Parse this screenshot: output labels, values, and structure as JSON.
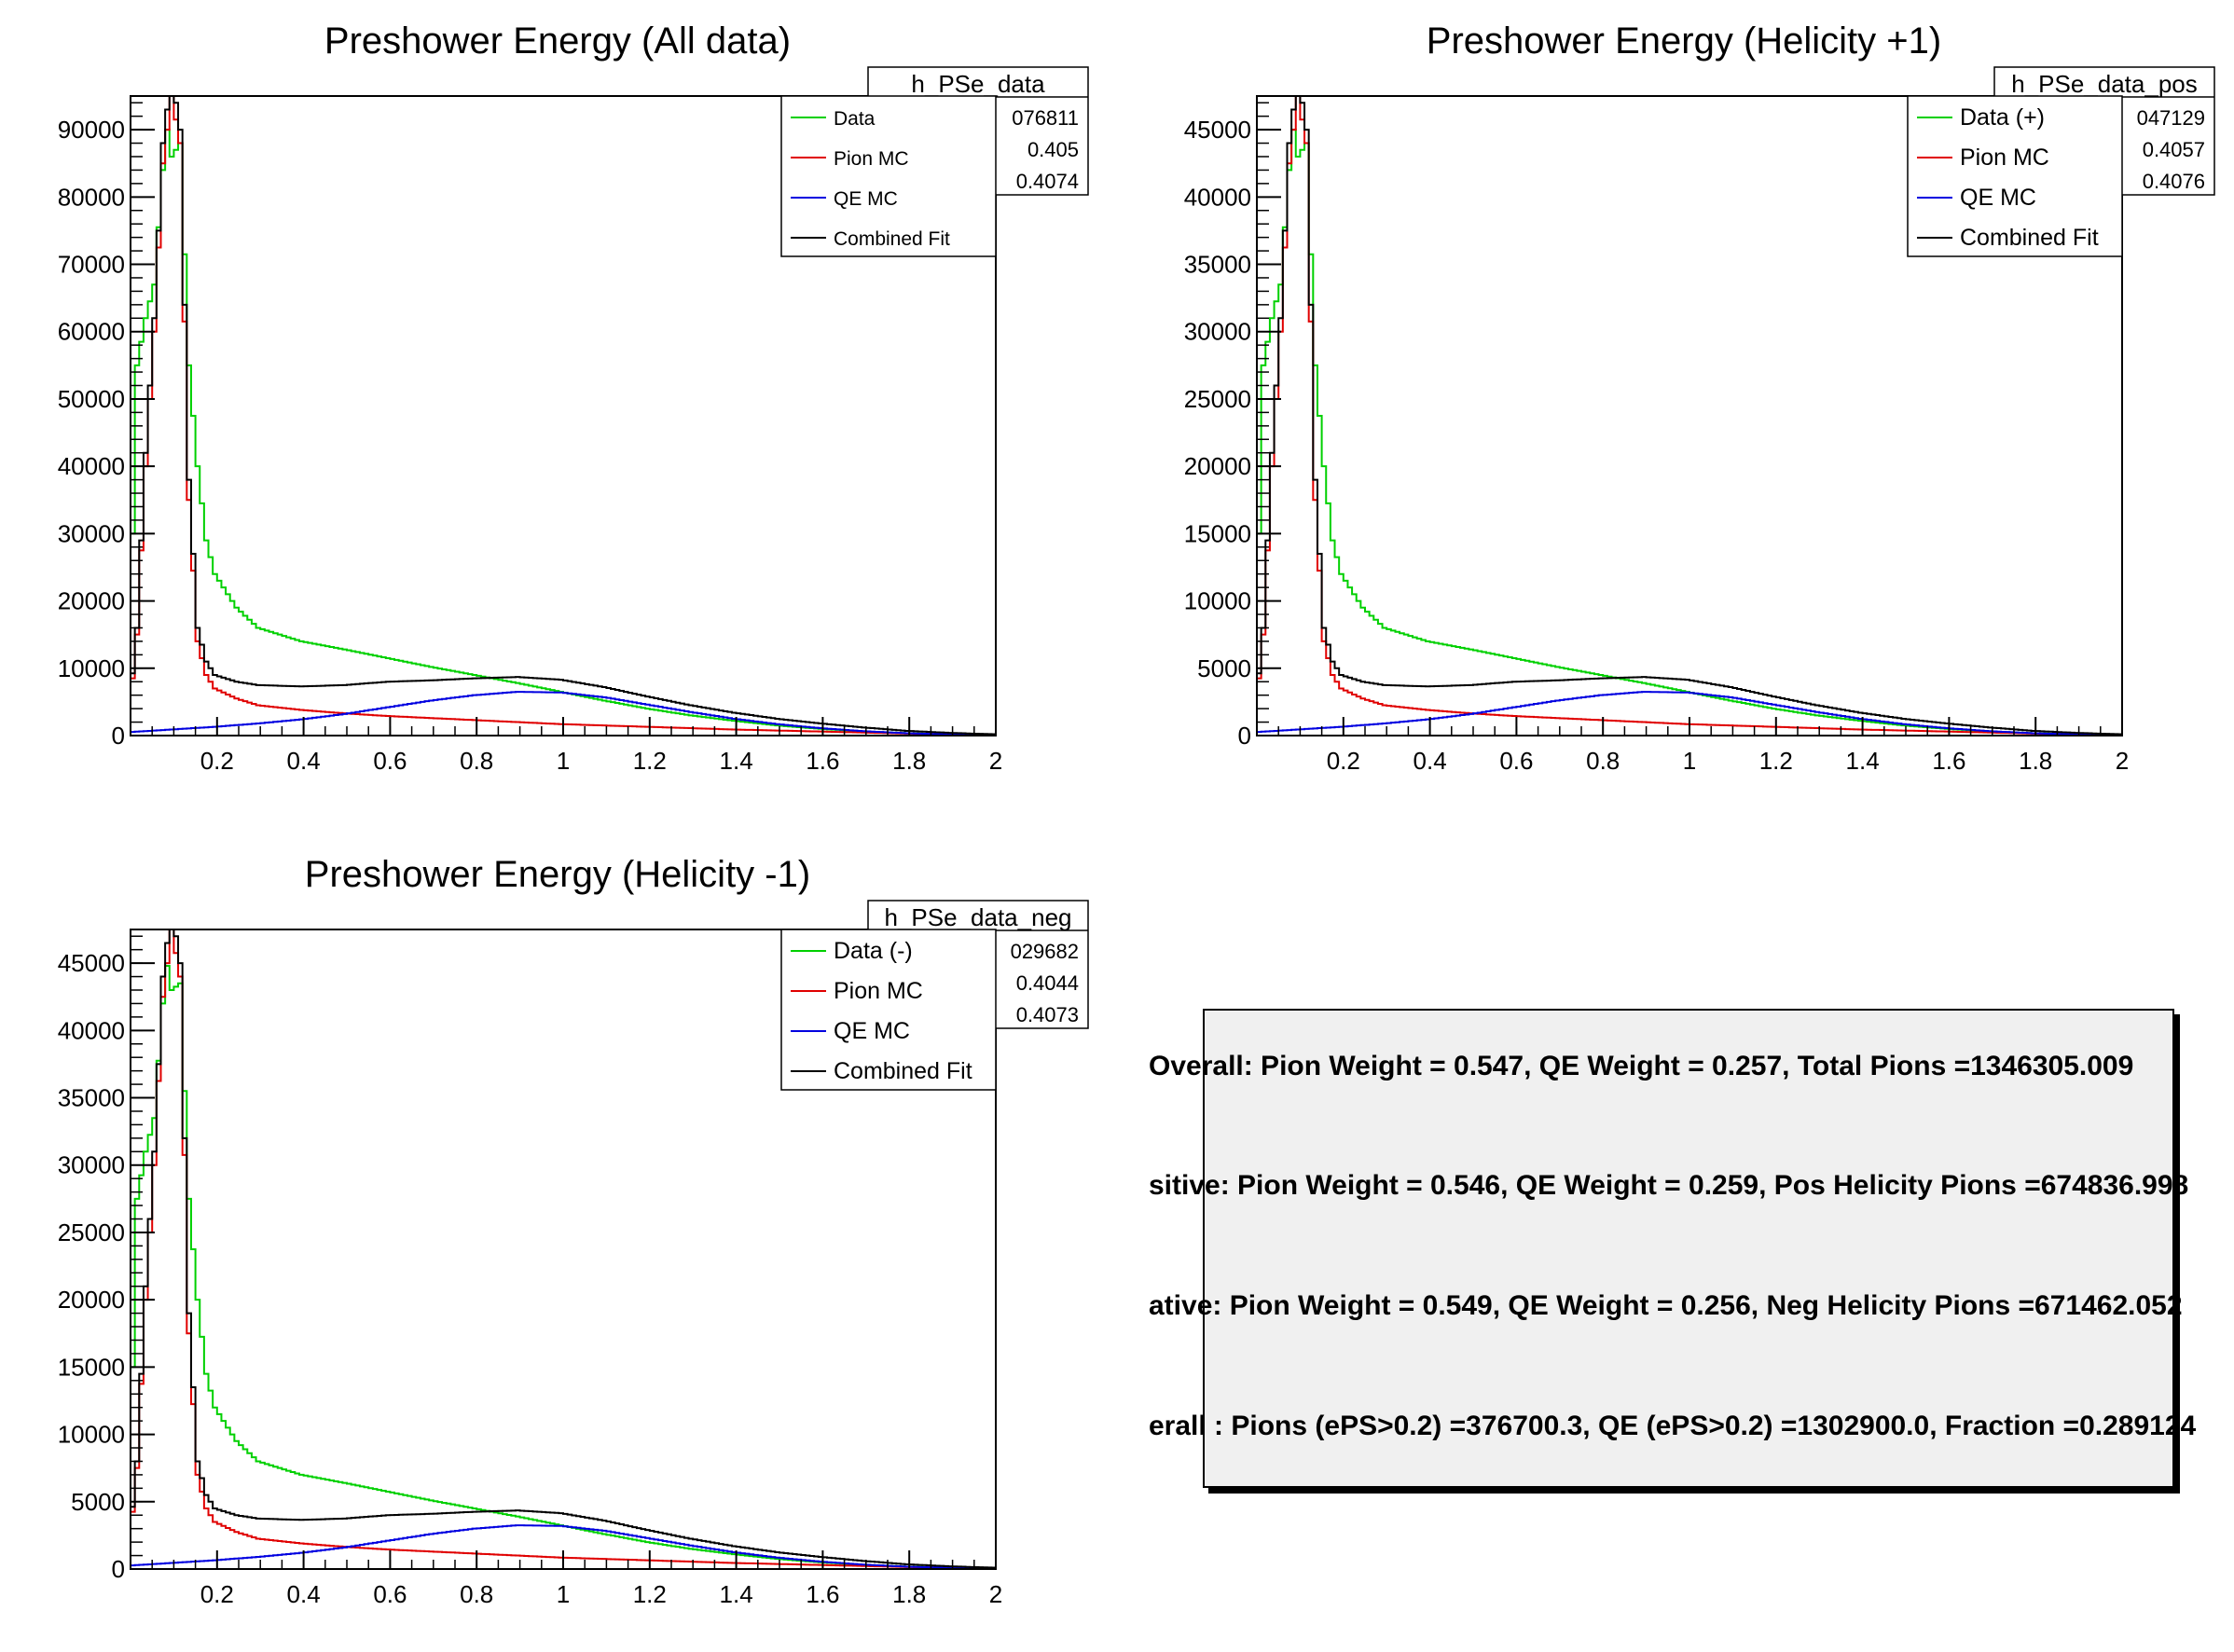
{
  "chart_data": [
    {
      "type": "line",
      "title": "Preshower Energy (All data)",
      "stats": {
        "name": "h_PSe_data",
        "rows": [
          "076811",
          "0.405",
          "0.4074"
        ]
      },
      "legend": [
        "Data",
        "Pion MC",
        "QE MC",
        "Combined Fit"
      ],
      "legend_position": "top-right",
      "xlim": [
        0.0,
        2.0
      ],
      "ylim": [
        0,
        95000
      ],
      "xticks": [
        "0.2",
        "0.4",
        "0.6",
        "0.8",
        "1",
        "1.2",
        "1.4",
        "1.6",
        "1.8",
        "2"
      ],
      "yticks": [
        "0",
        "10000",
        "20000",
        "30000",
        "40000",
        "50000",
        "60000",
        "70000",
        "80000",
        "90000"
      ],
      "series": [
        {
          "name": "Data",
          "color": "#00d000",
          "x": [
            0.0,
            0.02,
            0.04,
            0.06,
            0.08,
            0.09,
            0.1,
            0.12,
            0.14,
            0.16,
            0.18,
            0.2,
            0.25,
            0.3,
            0.4,
            0.5,
            0.6,
            0.7,
            0.8,
            0.9,
            1.0,
            1.1,
            1.2,
            1.3,
            1.4,
            1.5,
            1.6,
            1.7,
            1.8,
            1.9,
            2.0
          ],
          "y": [
            5000,
            55000,
            62000,
            67000,
            84000,
            90000,
            86000,
            88000,
            55000,
            40000,
            29000,
            24000,
            19000,
            16000,
            14000,
            12800,
            11500,
            10200,
            9000,
            7800,
            6500,
            5200,
            4000,
            3000,
            2200,
            1500,
            1000,
            600,
            350,
            200,
            100
          ]
        },
        {
          "name": "Pion MC",
          "color": "#e00000",
          "x": [
            0.0,
            0.02,
            0.04,
            0.06,
            0.08,
            0.1,
            0.12,
            0.14,
            0.16,
            0.18,
            0.2,
            0.25,
            0.3,
            0.4,
            0.5,
            0.6,
            0.7,
            0.8,
            0.9,
            1.0,
            1.2,
            1.4,
            1.6,
            1.8,
            2.0
          ],
          "y": [
            2000,
            15000,
            40000,
            60000,
            85000,
            95000,
            88000,
            35000,
            14000,
            9000,
            7000,
            5500,
            4500,
            3800,
            3300,
            2900,
            2600,
            2300,
            2000,
            1700,
            1300,
            900,
            600,
            300,
            150
          ]
        },
        {
          "name": "QE MC",
          "color": "#0000e0",
          "x": [
            0.0,
            0.1,
            0.2,
            0.3,
            0.4,
            0.5,
            0.6,
            0.7,
            0.8,
            0.9,
            1.0,
            1.1,
            1.2,
            1.3,
            1.4,
            1.5,
            1.6,
            1.7,
            1.8,
            1.9,
            2.0
          ],
          "y": [
            500,
            900,
            1300,
            1800,
            2400,
            3200,
            4200,
            5200,
            6000,
            6500,
            6400,
            5700,
            4600,
            3500,
            2500,
            1700,
            1100,
            650,
            350,
            180,
            80
          ]
        },
        {
          "name": "Combined Fit",
          "color": "#000000",
          "x": [
            0.0,
            0.02,
            0.04,
            0.06,
            0.08,
            0.1,
            0.12,
            0.14,
            0.16,
            0.18,
            0.2,
            0.25,
            0.3,
            0.4,
            0.5,
            0.6,
            0.7,
            0.8,
            0.9,
            1.0,
            1.1,
            1.2,
            1.3,
            1.4,
            1.5,
            1.6,
            1.7,
            1.8,
            1.9,
            2.0
          ],
          "y": [
            2500,
            16000,
            42000,
            62000,
            88000,
            98000,
            90000,
            38000,
            16000,
            11000,
            9000,
            8000,
            7500,
            7300,
            7500,
            8000,
            8200,
            8500,
            8700,
            8300,
            7200,
            5800,
            4500,
            3400,
            2500,
            1800,
            1200,
            700,
            400,
            200
          ]
        }
      ]
    },
    {
      "type": "line",
      "title": "Preshower Energy (Helicity +1)",
      "stats": {
        "name": "h_PSe_data_pos",
        "rows": [
          "047129",
          "0.4057",
          "0.4076"
        ]
      },
      "legend": [
        "Data (+)",
        "Pion MC",
        "QE MC",
        "Combined Fit"
      ],
      "legend_position": "top-right",
      "xlim": [
        0.0,
        2.0
      ],
      "ylim": [
        0,
        47500
      ],
      "xticks": [
        "0.2",
        "0.4",
        "0.6",
        "0.8",
        "1",
        "1.2",
        "1.4",
        "1.6",
        "1.8",
        "2"
      ],
      "yticks": [
        "0",
        "5000",
        "10000",
        "15000",
        "20000",
        "25000",
        "30000",
        "35000",
        "40000",
        "45000"
      ],
      "series": [
        {
          "name": "Data (+)",
          "color": "#00d000",
          "x": [
            0.0,
            0.02,
            0.04,
            0.06,
            0.08,
            0.09,
            0.1,
            0.12,
            0.14,
            0.16,
            0.18,
            0.2,
            0.25,
            0.3,
            0.4,
            0.5,
            0.6,
            0.7,
            0.8,
            0.9,
            1.0,
            1.1,
            1.2,
            1.3,
            1.4,
            1.5,
            1.6,
            1.7,
            1.8,
            1.9,
            2.0
          ],
          "y": [
            2500,
            27500,
            31000,
            33500,
            42000,
            45000,
            43000,
            44000,
            27500,
            20000,
            14500,
            12000,
            9500,
            8000,
            7000,
            6400,
            5750,
            5100,
            4500,
            3900,
            3250,
            2600,
            2000,
            1500,
            1100,
            750,
            500,
            300,
            175,
            100,
            50
          ]
        },
        {
          "name": "Pion MC",
          "color": "#e00000",
          "x": [
            0.0,
            0.02,
            0.04,
            0.06,
            0.08,
            0.1,
            0.12,
            0.14,
            0.16,
            0.18,
            0.2,
            0.25,
            0.3,
            0.4,
            0.5,
            0.6,
            0.7,
            0.8,
            0.9,
            1.0,
            1.2,
            1.4,
            1.6,
            1.8,
            2.0
          ],
          "y": [
            1000,
            7500,
            20000,
            30000,
            42500,
            47500,
            44000,
            17500,
            7000,
            4500,
            3500,
            2750,
            2250,
            1900,
            1650,
            1450,
            1300,
            1150,
            1000,
            850,
            650,
            450,
            300,
            150,
            75
          ]
        },
        {
          "name": "QE MC",
          "color": "#0000e0",
          "x": [
            0.0,
            0.1,
            0.2,
            0.3,
            0.4,
            0.5,
            0.6,
            0.7,
            0.8,
            0.9,
            1.0,
            1.1,
            1.2,
            1.3,
            1.4,
            1.5,
            1.6,
            1.7,
            1.8,
            1.9,
            2.0
          ],
          "y": [
            250,
            450,
            650,
            900,
            1200,
            1600,
            2100,
            2600,
            3000,
            3250,
            3200,
            2850,
            2300,
            1750,
            1250,
            850,
            550,
            325,
            175,
            90,
            40
          ]
        },
        {
          "name": "Combined Fit",
          "color": "#000000",
          "x": [
            0.0,
            0.02,
            0.04,
            0.06,
            0.08,
            0.1,
            0.12,
            0.14,
            0.16,
            0.18,
            0.2,
            0.25,
            0.3,
            0.4,
            0.5,
            0.6,
            0.7,
            0.8,
            0.9,
            1.0,
            1.1,
            1.2,
            1.3,
            1.4,
            1.5,
            1.6,
            1.7,
            1.8,
            1.9,
            2.0
          ],
          "y": [
            1250,
            8000,
            21000,
            31000,
            44000,
            49000,
            45000,
            19000,
            8000,
            5500,
            4500,
            4000,
            3750,
            3650,
            3750,
            4000,
            4100,
            4250,
            4350,
            4150,
            3600,
            2900,
            2250,
            1700,
            1250,
            900,
            600,
            350,
            200,
            100
          ]
        }
      ]
    },
    {
      "type": "line",
      "title": "Preshower Energy (Helicity -1)",
      "stats": {
        "name": "h_PSe_data_neg",
        "rows": [
          "029682",
          "0.4044",
          "0.4073"
        ]
      },
      "legend": [
        "Data (-)",
        "Pion MC",
        "QE MC",
        "Combined Fit"
      ],
      "legend_position": "top-right",
      "xlim": [
        0.0,
        2.0
      ],
      "ylim": [
        0,
        47500
      ],
      "xticks": [
        "0.2",
        "0.4",
        "0.6",
        "0.8",
        "1",
        "1.2",
        "1.4",
        "1.6",
        "1.8",
        "2"
      ],
      "yticks": [
        "0",
        "5000",
        "10000",
        "15000",
        "20000",
        "25000",
        "30000",
        "35000",
        "40000",
        "45000"
      ],
      "series": [
        {
          "name": "Data (-)",
          "color": "#00d000",
          "x": [
            0.0,
            0.02,
            0.04,
            0.06,
            0.08,
            0.09,
            0.1,
            0.12,
            0.14,
            0.16,
            0.18,
            0.2,
            0.25,
            0.3,
            0.4,
            0.5,
            0.6,
            0.7,
            0.8,
            0.9,
            1.0,
            1.1,
            1.2,
            1.3,
            1.4,
            1.5,
            1.6,
            1.7,
            1.8,
            1.9,
            2.0
          ],
          "y": [
            2500,
            27500,
            31000,
            33500,
            42000,
            44800,
            43000,
            43500,
            27500,
            20000,
            14500,
            12000,
            9500,
            8000,
            7000,
            6400,
            5750,
            5100,
            4500,
            3900,
            3250,
            2600,
            2000,
            1500,
            1100,
            750,
            500,
            300,
            175,
            100,
            50
          ]
        },
        {
          "name": "Pion MC",
          "color": "#e00000",
          "x": [
            0.0,
            0.02,
            0.04,
            0.06,
            0.08,
            0.1,
            0.12,
            0.14,
            0.16,
            0.18,
            0.2,
            0.25,
            0.3,
            0.4,
            0.5,
            0.6,
            0.7,
            0.8,
            0.9,
            1.0,
            1.2,
            1.4,
            1.6,
            1.8,
            2.0
          ],
          "y": [
            1000,
            7500,
            20000,
            30000,
            42500,
            47500,
            44000,
            17500,
            7000,
            4500,
            3500,
            2750,
            2250,
            1900,
            1650,
            1450,
            1300,
            1150,
            1000,
            850,
            650,
            450,
            300,
            150,
            75
          ]
        },
        {
          "name": "QE MC",
          "color": "#0000e0",
          "x": [
            0.0,
            0.1,
            0.2,
            0.3,
            0.4,
            0.5,
            0.6,
            0.7,
            0.8,
            0.9,
            1.0,
            1.1,
            1.2,
            1.3,
            1.4,
            1.5,
            1.6,
            1.7,
            1.8,
            1.9,
            2.0
          ],
          "y": [
            250,
            450,
            650,
            900,
            1200,
            1600,
            2100,
            2600,
            3000,
            3250,
            3200,
            2850,
            2300,
            1750,
            1250,
            850,
            550,
            325,
            175,
            90,
            40
          ]
        },
        {
          "name": "Combined Fit",
          "color": "#000000",
          "x": [
            0.0,
            0.02,
            0.04,
            0.06,
            0.08,
            0.1,
            0.12,
            0.14,
            0.16,
            0.18,
            0.2,
            0.25,
            0.3,
            0.4,
            0.5,
            0.6,
            0.7,
            0.8,
            0.9,
            1.0,
            1.1,
            1.2,
            1.3,
            1.4,
            1.5,
            1.6,
            1.7,
            1.8,
            1.9,
            2.0
          ],
          "y": [
            1250,
            8000,
            21000,
            31000,
            44000,
            49000,
            45000,
            19000,
            8000,
            5500,
            4500,
            4000,
            3750,
            3650,
            3750,
            4000,
            4100,
            4250,
            4350,
            4150,
            3600,
            2900,
            2250,
            1700,
            1250,
            900,
            600,
            350,
            200,
            100
          ]
        }
      ]
    }
  ],
  "summary": {
    "lines": [
      "Overall:   Pion Weight = 0.547, QE Weight = 0.257, Total Pions =1346305.009",
      "sitive:  Pion Weight = 0.546, QE Weight = 0.259, Pos Helicity Pions =674836.998",
      "ative:  Pion Weight = 0.549, QE Weight = 0.256, Neg Helicity Pions =671462.052",
      "erall : Pions (ePS>0.2) =376700.3, QE (ePS>0.2) =1302900.0, Fraction =0.289124"
    ]
  }
}
